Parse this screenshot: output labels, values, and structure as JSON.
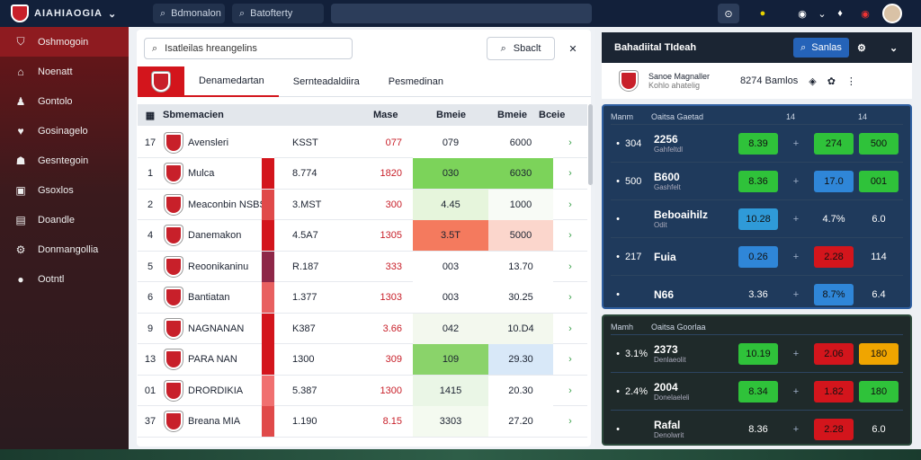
{
  "topbar": {
    "brand": "AIAHIAOGIA",
    "search1": "Bdmonalon",
    "search2": "Batofterty"
  },
  "sidebar": {
    "items": [
      {
        "label": "Oshmogoin",
        "icon": "shield-icon"
      },
      {
        "label": "Noenatt",
        "icon": "home-icon"
      },
      {
        "label": "Gontolo",
        "icon": "user-icon"
      },
      {
        "label": "Gosinagelo",
        "icon": "heart-icon"
      },
      {
        "label": "Gesntegoin",
        "icon": "group-icon"
      },
      {
        "label": "Gsoxlos",
        "icon": "book-icon"
      },
      {
        "label": "Doandle",
        "icon": "chart-icon"
      },
      {
        "label": "Donmangollia",
        "icon": "tools-icon"
      },
      {
        "label": "Ootntl",
        "icon": "location-icon"
      }
    ]
  },
  "main": {
    "search_placeholder": "Isatleilas hreangelins",
    "search_btn": "Sbaclt",
    "tabs": [
      "Denamedartan",
      "Sernteadaldiira",
      "Pesmedinan"
    ],
    "header": {
      "name": "Sbmemacien",
      "c1": "Mase",
      "c2": "Bmeie",
      "c3": "Bmeie",
      "c4": "Bceie"
    },
    "rows": [
      {
        "rank": "17",
        "name": "Avensleri",
        "v1": "KSST",
        "v2": "077",
        "v3": "079",
        "v4": "6000",
        "bar": "#ffffff",
        "c3": "#ffffff",
        "c4": "#ffffff"
      },
      {
        "rank": "1",
        "name": "Mulca",
        "v1": "8.774",
        "v2": "1820",
        "v3": "030",
        "v4": "6030",
        "bar": "#d3151c",
        "c3": "#7cd35a",
        "c4": "#7cd35a"
      },
      {
        "rank": "2",
        "name": "Meaconbin NSBS",
        "v1": "3.MST",
        "v2": "300",
        "v3": "4.45",
        "v4": "1000",
        "bar": "#e04a4a",
        "c3": "#e6f5dc",
        "c4": "#f8fbf6"
      },
      {
        "rank": "4",
        "name": "Danemakon",
        "v1": "4.5A7",
        "v2": "1305",
        "v3": "3.5T",
        "v4": "5000",
        "bar": "#d3151c",
        "c3": "#f47a5e",
        "c4": "#fbd6cc"
      },
      {
        "rank": "5",
        "name": "Reoonikaninu",
        "v1": "R.187",
        "v2": "333",
        "v3": "003",
        "v4": "13.70",
        "bar": "#8e2748",
        "c3": "#ffffff",
        "c4": "#ffffff"
      },
      {
        "rank": "6",
        "name": "Bantiatan",
        "v1": "1.377",
        "v2": "1303",
        "v3": "003",
        "v4": "30.25",
        "bar": "#e86060",
        "c3": "#ffffff",
        "c4": "#ffffff"
      },
      {
        "rank": "9",
        "name": "NAGNANAN",
        "v1": "K387",
        "v2": "3.66",
        "v3": "042",
        "v4": "10.D4",
        "bar": "#d3151c",
        "c3": "#f3f8ee",
        "c4": "#f3f8ee"
      },
      {
        "rank": "13",
        "name": "PARA NAN",
        "v1": "1300",
        "v2": "309",
        "v3": "109",
        "v4": "29.30",
        "bar": "#d3151c",
        "c3": "#8ad36a",
        "c4": "#d8e8f8"
      },
      {
        "rank": "01",
        "name": "DRORDIKIA",
        "v1": "5.387",
        "v2": "1300",
        "v3": "1415",
        "v4": "20.30",
        "bar": "#f07070",
        "c3": "#eaf6e6",
        "c4": "#ffffff"
      },
      {
        "rank": "37",
        "name": "Breana MIA",
        "v1": "1.190",
        "v2": "8.15",
        "v3": "3303",
        "v4": "27.20",
        "bar": "#e04a4a",
        "c3": "#f4faf0",
        "c4": "#ffffff"
      }
    ]
  },
  "right": {
    "title": "Bahadiital TIdeah",
    "btn": "Sanlas",
    "info": {
      "name": "Sanoe Magnaller",
      "sub": "Kohlo ahatelig",
      "stat": "8274 Bamlos"
    },
    "card1": {
      "head": [
        "Manm",
        "Oaitsa Gaetad",
        "14",
        "14"
      ],
      "rows": [
        {
          "val": "304",
          "label": "2256",
          "sub": "Gahfeltdl",
          "p1": "8.39",
          "p1c": "#2fc23a",
          "p2": "274",
          "p2c": "#2fc23a",
          "p3": "500",
          "p3c": "#2fc23a"
        },
        {
          "val": "500",
          "label": "B600",
          "sub": "Gashfelt",
          "p1": "8.36",
          "p1c": "#2fc23a",
          "p2": "17.0",
          "p2c": "#2f86d8",
          "p3": "001",
          "p3c": "#2fc23a"
        },
        {
          "val": "",
          "label": "Beboaihilz",
          "sub": "Odit",
          "p1": "10.28",
          "p1c": "#2f9ad8",
          "p2": "4.7%",
          "p2c": "",
          "p3": "6.0",
          "p3c": ""
        },
        {
          "val": "217",
          "label": "Fuia",
          "sub": "",
          "p1": "0.26",
          "p1c": "#2f86d8",
          "p2": "2.28",
          "p2c": "#d3151c",
          "p3": "114",
          "p3c": ""
        },
        {
          "val": "",
          "label": "N66",
          "sub": "",
          "p1": "3.36",
          "p1c": "",
          "p2": "8.7%",
          "p2c": "#2f86d8",
          "p3": "6.4",
          "p3c": ""
        }
      ]
    },
    "card2": {
      "head": [
        "Mamh",
        "Oaitsa Goorlaa"
      ],
      "rows": [
        {
          "val": "3.1%",
          "label": "2373",
          "sub": "Denlaeolit",
          "p1": "10.19",
          "p1c": "#2fc23a",
          "p2": "2.06",
          "p2c": "#d3151c",
          "p3": "180",
          "p3c": "#f0a500"
        },
        {
          "val": "2.4%",
          "label": "2004",
          "sub": "Donelaeleli",
          "p1": "8.34",
          "p1c": "#2fc23a",
          "p2": "1.82",
          "p2c": "#d3151c",
          "p3": "180",
          "p3c": "#2fc23a"
        },
        {
          "val": "",
          "label": "Rafal",
          "sub": "Denolwrit",
          "p1": "8.36",
          "p1c": "",
          "p2": "2.28",
          "p2c": "#d3151c",
          "p3": "6.0",
          "p3c": ""
        }
      ]
    }
  }
}
